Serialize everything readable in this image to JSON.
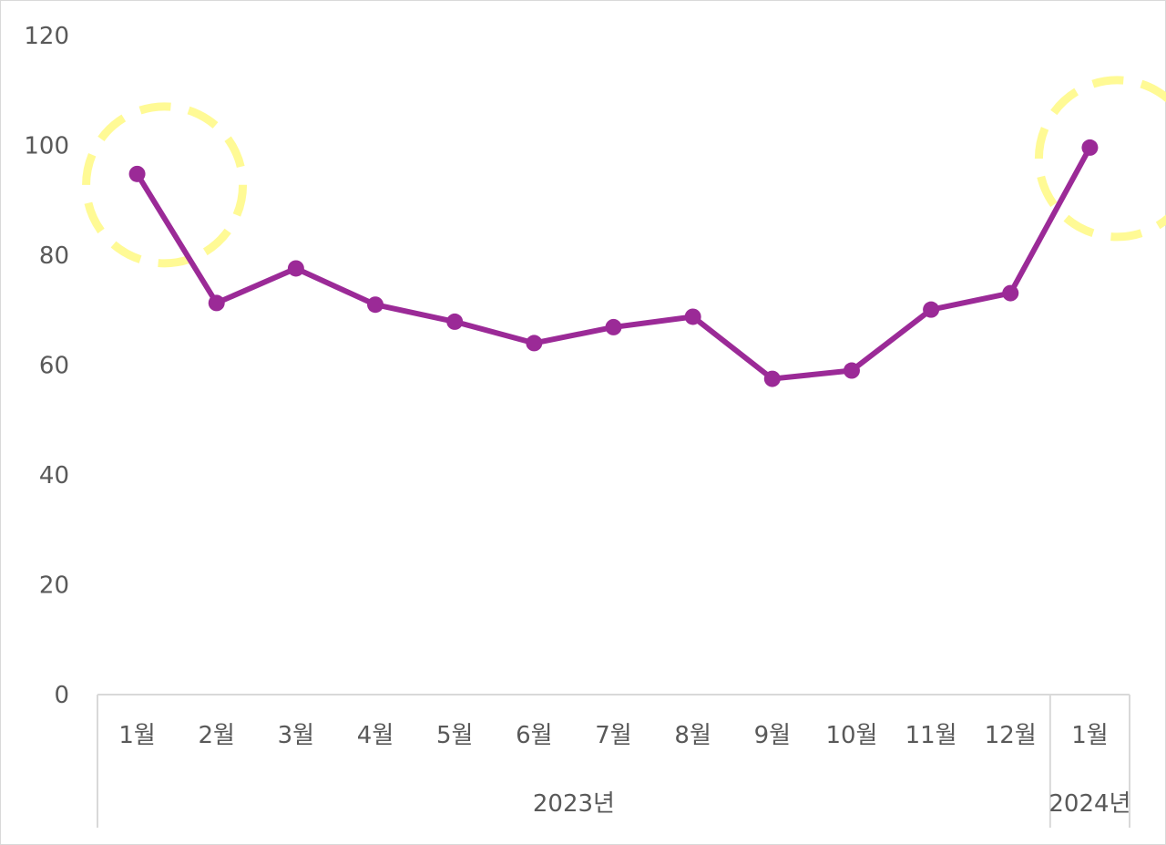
{
  "chart_data": {
    "type": "line",
    "title": "",
    "xlabel": "",
    "ylabel": "",
    "ylim": [
      0,
      120
    ],
    "yticks": [
      0,
      20,
      40,
      60,
      80,
      100,
      120
    ],
    "grid": false,
    "legend": "none",
    "categories": [
      "1월",
      "2월",
      "3월",
      "4월",
      "5월",
      "6월",
      "7월",
      "8월",
      "9월",
      "10월",
      "11월",
      "12월",
      "1월"
    ],
    "groups": [
      {
        "label": "2023년",
        "start": 0,
        "end": 11
      },
      {
        "label": "2024년",
        "start": 12,
        "end": 12
      }
    ],
    "series": [
      {
        "values": [
          94.8,
          71.3,
          77.6,
          71.0,
          67.9,
          64.0,
          66.9,
          68.8,
          57.5,
          59.0,
          70.1,
          73.1,
          99.6
        ],
        "color": "#9b2a97"
      }
    ],
    "highlights": [
      0,
      12
    ],
    "highlight_color": "#fff98a"
  }
}
